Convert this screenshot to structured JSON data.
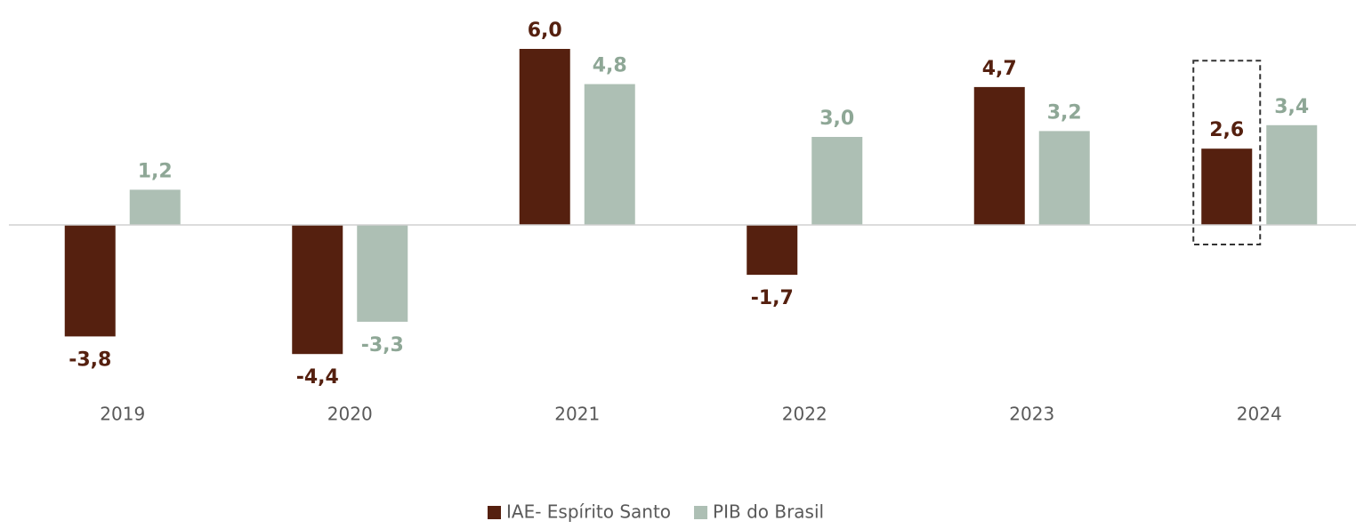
{
  "chart_data": {
    "type": "bar",
    "categories": [
      "2019",
      "2020",
      "2021",
      "2022",
      "2023",
      "2024"
    ],
    "series": [
      {
        "name": "IAE- Espírito Santo",
        "color": "#55200f",
        "label_color": "#55200f",
        "values": [
          -3.8,
          -4.4,
          6.0,
          -1.7,
          4.7,
          2.6
        ],
        "value_labels": [
          "-3,8",
          "-4,4",
          "6,0",
          "-1,7",
          "4,7",
          "2,6"
        ]
      },
      {
        "name": "PIB do Brasil",
        "color": "#adbfb4",
        "label_color": "#8ea796",
        "values": [
          1.2,
          -3.3,
          4.8,
          3.0,
          3.2,
          3.4
        ],
        "value_labels": [
          "1,2",
          "-3,3",
          "4,8",
          "3,0",
          "3,2",
          "3,4"
        ]
      }
    ],
    "ylim": [
      -6.2,
      7
    ],
    "legend": "bottom",
    "highlight": {
      "series": 0,
      "category": 5
    }
  }
}
